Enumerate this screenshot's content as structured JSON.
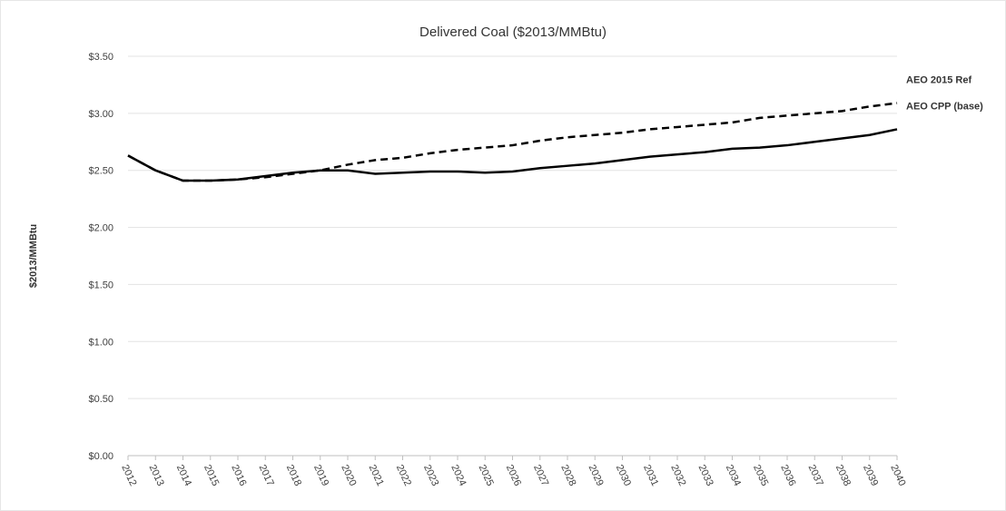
{
  "chart_data": {
    "type": "line",
    "title": "Delivered Coal ($2013/MMBtu)",
    "y_label": "$2013/MMBtu",
    "categories": [
      "2012",
      "2013",
      "2014",
      "2015",
      "2016",
      "2017",
      "2018",
      "2019",
      "2020",
      "2021",
      "2022",
      "2023",
      "2024",
      "2025",
      "2026",
      "2027",
      "2028",
      "2029",
      "2030",
      "2031",
      "2032",
      "2033",
      "2034",
      "2035",
      "2036",
      "2037",
      "2038",
      "2039",
      "2040"
    ],
    "series": [
      {
        "name": "AEO 2015 Ref",
        "color": "#000000",
        "dashed": true,
        "values": [
          2.63,
          2.5,
          2.41,
          2.41,
          2.42,
          2.44,
          2.47,
          2.5,
          2.55,
          2.59,
          2.61,
          2.65,
          2.68,
          2.7,
          2.72,
          2.76,
          2.79,
          2.81,
          2.83,
          2.86,
          2.88,
          2.9,
          2.92,
          2.96,
          2.98,
          3.0,
          3.02,
          3.06,
          3.09
        ]
      },
      {
        "name": "AEO CPP (base)",
        "color": "#000000",
        "dashed": false,
        "values": [
          2.63,
          2.5,
          2.41,
          2.41,
          2.42,
          2.45,
          2.48,
          2.5,
          2.5,
          2.47,
          2.48,
          2.49,
          2.49,
          2.48,
          2.49,
          2.52,
          2.54,
          2.56,
          2.59,
          2.62,
          2.64,
          2.66,
          2.69,
          2.7,
          2.72,
          2.75,
          2.78,
          2.81,
          2.86
        ]
      }
    ],
    "ylim": [
      0,
      3.5
    ],
    "yticks": [
      {
        "value": 0,
        "label": "$0.00"
      },
      {
        "value": 0.5,
        "label": "$0.50"
      },
      {
        "value": 1,
        "label": "$1.00"
      },
      {
        "value": 1.5,
        "label": "$1.50"
      },
      {
        "value": 2,
        "label": "$2.00"
      },
      {
        "value": 2.5,
        "label": "$2.50"
      },
      {
        "value": 3,
        "label": "$3.00"
      },
      {
        "value": 3.5,
        "label": "$3.50"
      }
    ],
    "grid": true
  }
}
